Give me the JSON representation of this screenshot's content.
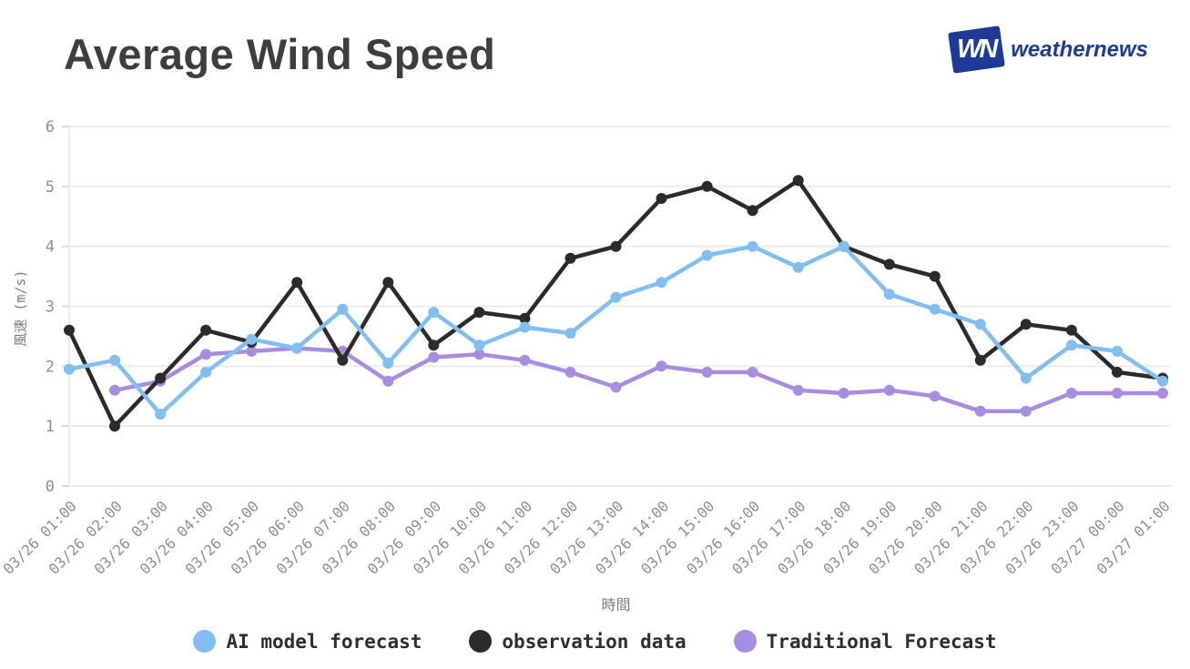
{
  "header": {
    "title": "Average Wind Speed",
    "logo": {
      "mark": "WN",
      "text": "weathernews",
      "color": "#1d3a96"
    }
  },
  "chart_data": {
    "type": "line",
    "title": "Average Wind Speed",
    "xlabel": "時間",
    "ylabel": "風速 (m/s)",
    "ylim": [
      0,
      6
    ],
    "yticks": [
      0,
      1,
      2,
      3,
      4,
      5,
      6
    ],
    "grid": true,
    "legend_position": "bottom",
    "categories": [
      "03/26 01:00",
      "03/26 02:00",
      "03/26 03:00",
      "03/26 04:00",
      "03/26 05:00",
      "03/26 06:00",
      "03/26 07:00",
      "03/26 08:00",
      "03/26 09:00",
      "03/26 10:00",
      "03/26 11:00",
      "03/26 12:00",
      "03/26 13:00",
      "03/26 14:00",
      "03/26 15:00",
      "03/26 16:00",
      "03/26 17:00",
      "03/26 18:00",
      "03/26 19:00",
      "03/26 20:00",
      "03/26 21:00",
      "03/26 22:00",
      "03/26 23:00",
      "03/27 00:00",
      "03/27 01:00"
    ],
    "series": [
      {
        "name": "AI model forecast",
        "color": "#82bef0",
        "values": [
          1.95,
          2.1,
          1.2,
          1.9,
          2.45,
          2.3,
          2.95,
          2.05,
          2.9,
          2.35,
          2.65,
          2.55,
          3.15,
          3.4,
          3.85,
          4.0,
          3.65,
          4.0,
          3.2,
          2.95,
          2.7,
          1.8,
          2.35,
          2.25,
          1.75
        ]
      },
      {
        "name": "observation data",
        "color": "#2b2b2b",
        "values": [
          2.6,
          1.0,
          1.8,
          2.6,
          2.4,
          3.4,
          2.1,
          3.4,
          2.35,
          2.9,
          2.8,
          3.8,
          4.0,
          4.8,
          5.0,
          4.6,
          5.1,
          4.0,
          3.7,
          3.5,
          2.1,
          2.7,
          2.6,
          1.9,
          1.8
        ]
      },
      {
        "name": "Traditional Forecast",
        "color": "#a78de0",
        "values": [
          null,
          1.6,
          1.75,
          2.2,
          2.25,
          2.3,
          2.25,
          1.75,
          2.15,
          2.2,
          2.1,
          1.9,
          1.65,
          2.0,
          1.9,
          1.9,
          1.6,
          1.55,
          1.6,
          1.5,
          1.25,
          1.25,
          1.55,
          1.55,
          1.55
        ]
      }
    ],
    "style": {
      "grid_color": "#ececec",
      "tick_color": "#8f8f8f"
    }
  }
}
